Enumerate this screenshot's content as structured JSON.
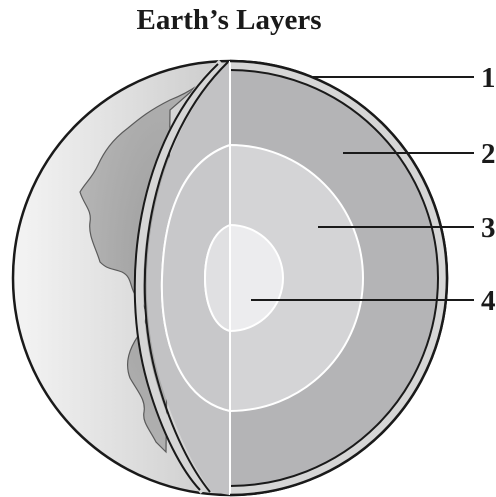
{
  "title": "Earth’s Layers",
  "labels": [
    {
      "id": "1",
      "text": "1"
    },
    {
      "id": "2",
      "text": "2"
    },
    {
      "id": "3",
      "text": "3"
    },
    {
      "id": "4",
      "text": "4"
    }
  ],
  "colors": {
    "outline": "#1a1a1a",
    "crust": "#d6d6d6",
    "mantle": "#b4b4b6",
    "outer_core": "#d4d4d6",
    "inner_core": "#ececee",
    "cut_face_left": "#c2c2c4",
    "leader_line": "#1a1a1a"
  }
}
